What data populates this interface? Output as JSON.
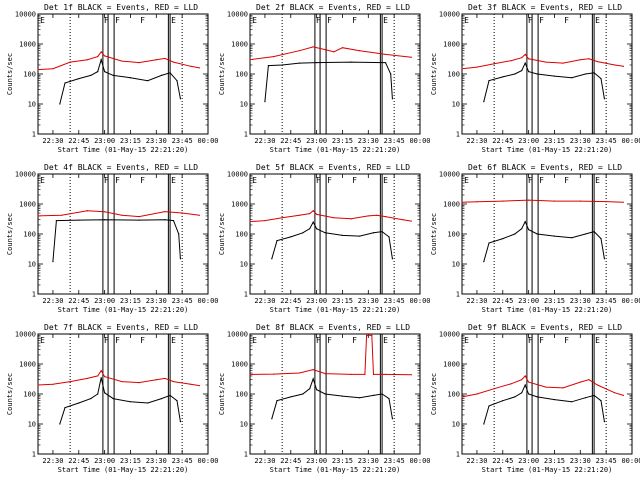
{
  "figure": {
    "xlabel": "Start Time (01-May-15 22:21:20)",
    "ylabel": "Counts/sec",
    "x_tick_labels": [
      "22:30",
      "22:45",
      "23:00",
      "23:15",
      "23:30",
      "23:45",
      "00:00"
    ],
    "y_tick_labels": [
      "1",
      "10",
      "100",
      "1000",
      "10000"
    ],
    "series_colors": {
      "events": "#000000",
      "lld": "#dd0000"
    },
    "marker_letters": [
      "E",
      "F",
      "F",
      "F",
      "E"
    ]
  },
  "chart_data": [
    {
      "type": "line",
      "title": "Det 1f BLACK = Events, RED = LLD",
      "ylim": [
        1,
        10000
      ],
      "xlim": [
        "22:21:20",
        "00:00"
      ],
      "series": [
        {
          "name": "Events",
          "x": [
            "22:34",
            "22:37",
            "22:45",
            "22:52",
            "22:56",
            "22:58",
            "23:00",
            "23:05",
            "23:15",
            "23:25",
            "23:33",
            "23:38",
            "23:42",
            "23:44"
          ],
          "values": [
            10,
            50,
            70,
            90,
            120,
            300,
            120,
            90,
            75,
            60,
            90,
            110,
            60,
            15
          ]
        },
        {
          "name": "LLD",
          "x": [
            "22:21:20",
            "22:30",
            "22:40",
            "22:50",
            "22:56",
            "22:58",
            "23:00",
            "23:10",
            "23:20",
            "23:30",
            "23:35",
            "23:40",
            "23:50",
            "23:55"
          ],
          "values": [
            140,
            150,
            250,
            300,
            380,
            550,
            400,
            270,
            240,
            300,
            330,
            250,
            180,
            160
          ]
        }
      ]
    },
    {
      "type": "line",
      "title": "Det 2f BLACK = Events, RED = LLD",
      "ylim": [
        1,
        10000
      ],
      "xlim": [
        "22:21:20",
        "00:00"
      ],
      "series": [
        {
          "name": "Events",
          "x": [
            "22:30",
            "22:32",
            "22:40",
            "22:50",
            "23:00",
            "23:20",
            "23:38",
            "23:40",
            "23:43",
            "23:44"
          ],
          "values": [
            12,
            190,
            200,
            230,
            240,
            250,
            240,
            240,
            100,
            15
          ]
        },
        {
          "name": "LLD",
          "x": [
            "22:21:20",
            "22:35",
            "22:50",
            "22:58",
            "23:05",
            "23:10",
            "23:15",
            "23:25",
            "23:40",
            "23:55"
          ],
          "values": [
            300,
            380,
            600,
            800,
            650,
            550,
            750,
            600,
            450,
            360
          ]
        }
      ]
    },
    {
      "type": "line",
      "title": "Det 3f BLACK = Events, RED = LLD",
      "ylim": [
        1,
        10000
      ],
      "xlim": [
        "22:21:20",
        "00:00"
      ],
      "series": [
        {
          "name": "Events",
          "x": [
            "22:34",
            "22:37",
            "22:45",
            "22:52",
            "22:56",
            "22:58",
            "23:00",
            "23:05",
            "23:15",
            "23:25",
            "23:33",
            "23:38",
            "23:42",
            "23:44"
          ],
          "values": [
            12,
            60,
            80,
            100,
            130,
            230,
            120,
            100,
            85,
            75,
            100,
            110,
            70,
            15
          ]
        },
        {
          "name": "LLD",
          "x": [
            "22:21:20",
            "22:30",
            "22:40",
            "22:50",
            "22:56",
            "22:58",
            "23:00",
            "23:10",
            "23:20",
            "23:30",
            "23:35",
            "23:40",
            "23:50",
            "23:55"
          ],
          "values": [
            150,
            170,
            220,
            280,
            350,
            450,
            320,
            250,
            230,
            300,
            320,
            260,
            200,
            180
          ]
        }
      ]
    },
    {
      "type": "line",
      "title": "Det 4f BLACK = Events, RED = LLD",
      "ylim": [
        1,
        10000
      ],
      "xlim": [
        "22:21:20",
        "00:00"
      ],
      "series": [
        {
          "name": "Events",
          "x": [
            "22:30",
            "22:32",
            "22:45",
            "23:00",
            "23:20",
            "23:35",
            "23:40",
            "23:43",
            "23:44"
          ],
          "values": [
            12,
            280,
            290,
            300,
            290,
            300,
            280,
            100,
            15
          ]
        },
        {
          "name": "LLD",
          "x": [
            "22:21:20",
            "22:35",
            "22:50",
            "23:00",
            "23:10",
            "23:20",
            "23:35",
            "23:45",
            "23:55"
          ],
          "values": [
            400,
            420,
            600,
            550,
            420,
            380,
            560,
            500,
            420
          ]
        }
      ]
    },
    {
      "type": "line",
      "title": "Det 5f BLACK = Events, RED = LLD",
      "ylim": [
        1,
        10000
      ],
      "xlim": [
        "22:21:20",
        "00:00"
      ],
      "series": [
        {
          "name": "Events",
          "x": [
            "22:34",
            "22:37",
            "22:45",
            "22:52",
            "22:56",
            "22:58",
            "23:00",
            "23:05",
            "23:15",
            "23:25",
            "23:33",
            "23:38",
            "23:42",
            "23:44"
          ],
          "values": [
            15,
            60,
            80,
            110,
            150,
            250,
            150,
            110,
            90,
            85,
            110,
            120,
            80,
            15
          ]
        },
        {
          "name": "LLD",
          "x": [
            "22:21:20",
            "22:30",
            "22:40",
            "22:50",
            "22:56",
            "22:58",
            "23:00",
            "23:10",
            "23:20",
            "23:30",
            "23:35",
            "23:40",
            "23:50",
            "23:55"
          ],
          "values": [
            260,
            280,
            350,
            420,
            480,
            600,
            450,
            350,
            320,
            400,
            420,
            380,
            300,
            270
          ]
        }
      ]
    },
    {
      "type": "line",
      "title": "Det 6f BLACK = Events, RED = LLD",
      "ylim": [
        1,
        10000
      ],
      "xlim": [
        "22:21:20",
        "00:00"
      ],
      "series": [
        {
          "name": "Events",
          "x": [
            "22:34",
            "22:37",
            "22:45",
            "22:52",
            "22:56",
            "22:58",
            "23:00",
            "23:05",
            "23:15",
            "23:25",
            "23:33",
            "23:38",
            "23:42",
            "23:44"
          ],
          "values": [
            12,
            50,
            70,
            100,
            150,
            260,
            140,
            100,
            85,
            75,
            100,
            120,
            70,
            15
          ]
        },
        {
          "name": "LLD",
          "x": [
            "22:21:20",
            "22:30",
            "22:45",
            "23:00",
            "23:15",
            "23:30",
            "23:45",
            "23:55"
          ],
          "values": [
            1150,
            1180,
            1250,
            1350,
            1250,
            1250,
            1200,
            1150
          ]
        }
      ]
    },
    {
      "type": "line",
      "title": "Det 7f BLACK = Events, RED = LLD",
      "ylim": [
        1,
        10000
      ],
      "xlim": [
        "22:21:20",
        "00:00"
      ],
      "series": [
        {
          "name": "Events",
          "x": [
            "22:34",
            "22:37",
            "22:45",
            "22:52",
            "22:56",
            "22:58",
            "23:00",
            "23:05",
            "23:15",
            "23:25",
            "23:33",
            "23:38",
            "23:42",
            "23:44"
          ],
          "values": [
            10,
            35,
            50,
            70,
            100,
            350,
            110,
            70,
            55,
            50,
            70,
            90,
            60,
            12
          ]
        },
        {
          "name": "LLD",
          "x": [
            "22:21:20",
            "22:30",
            "22:40",
            "22:50",
            "22:56",
            "22:58",
            "23:00",
            "23:10",
            "23:20",
            "23:30",
            "23:35",
            "23:40",
            "23:50",
            "23:55"
          ],
          "values": [
            200,
            210,
            260,
            330,
            400,
            600,
            380,
            260,
            240,
            300,
            330,
            260,
            210,
            190
          ]
        }
      ]
    },
    {
      "type": "line",
      "title": "Det 8f BLACK = Events, RED = LLD",
      "ylim": [
        1,
        10000
      ],
      "xlim": [
        "22:21:20",
        "00:00"
      ],
      "series": [
        {
          "name": "Events",
          "x": [
            "22:34",
            "22:37",
            "22:45",
            "22:52",
            "22:56",
            "22:58",
            "23:00",
            "23:05",
            "23:15",
            "23:25",
            "23:33",
            "23:38",
            "23:42",
            "23:44"
          ],
          "values": [
            15,
            60,
            80,
            100,
            150,
            320,
            140,
            100,
            85,
            75,
            90,
            100,
            70,
            15
          ]
        },
        {
          "name": "LLD",
          "x": [
            "22:21:20",
            "22:35",
            "22:50",
            "22:58",
            "23:05",
            "23:20",
            "23:28",
            "23:29",
            "23:32",
            "23:33",
            "23:40",
            "23:55"
          ],
          "values": [
            450,
            460,
            500,
            650,
            480,
            450,
            450,
            9000,
            9000,
            450,
            450,
            440
          ]
        }
      ]
    },
    {
      "type": "line",
      "title": "Det 9f BLACK = Events, RED = LLD",
      "ylim": [
        1,
        10000
      ],
      "xlim": [
        "22:21:20",
        "00:00"
      ],
      "series": [
        {
          "name": "Events",
          "x": [
            "22:34",
            "22:37",
            "22:45",
            "22:52",
            "22:56",
            "22:58",
            "23:00",
            "23:05",
            "23:15",
            "23:25",
            "23:33",
            "23:38",
            "23:42",
            "23:44"
          ],
          "values": [
            10,
            40,
            60,
            80,
            110,
            200,
            100,
            80,
            65,
            55,
            75,
            90,
            60,
            12
          ]
        },
        {
          "name": "LLD",
          "x": [
            "22:21:20",
            "22:30",
            "22:40",
            "22:50",
            "22:56",
            "22:58",
            "23:00",
            "23:10",
            "23:20",
            "23:30",
            "23:35",
            "23:40",
            "23:50",
            "23:55"
          ],
          "values": [
            80,
            100,
            150,
            220,
            300,
            400,
            250,
            170,
            160,
            250,
            300,
            200,
            110,
            90
          ]
        }
      ]
    }
  ]
}
